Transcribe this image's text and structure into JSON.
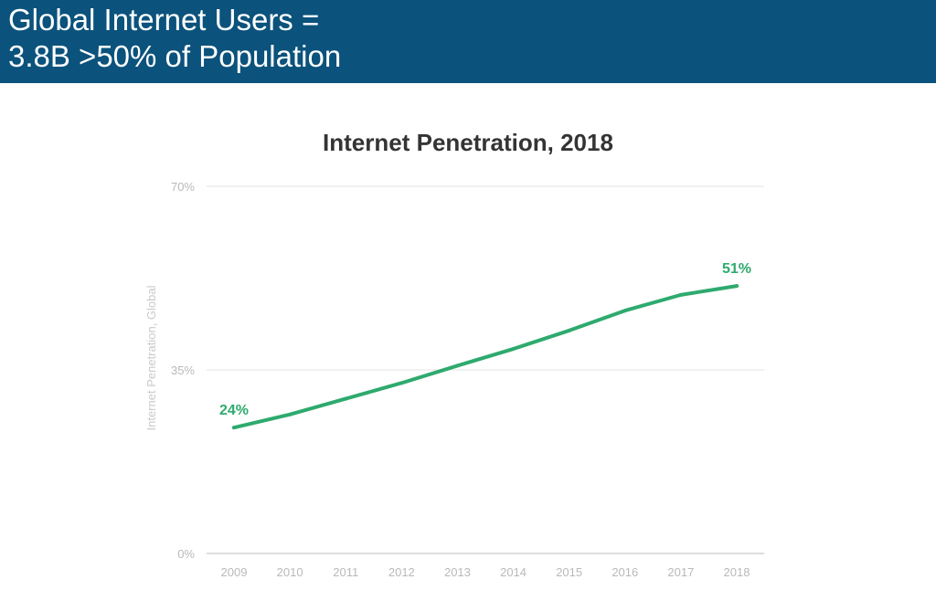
{
  "banner": {
    "line1": "Global Internet Users =",
    "line2": "3.8B >50% of Population",
    "background": "#0b527c"
  },
  "chart_data": {
    "type": "line",
    "title": "Internet Penetration, 2018",
    "xlabel": "",
    "ylabel": "Internet Penetration, Global",
    "x": [
      "2009",
      "2010",
      "2011",
      "2012",
      "2013",
      "2014",
      "2015",
      "2016",
      "2017",
      "2018"
    ],
    "series": [
      {
        "values": [
          24,
          26.5,
          29.5,
          32.5,
          35.8,
          39,
          42.5,
          46.3,
          49.3,
          51
        ],
        "color": "#2eaa6e"
      }
    ],
    "yticks": [
      "0%",
      "35%",
      "70%"
    ],
    "ylim": [
      0,
      70
    ],
    "grid": true,
    "data_labels": [
      {
        "index": 0,
        "text": "24%"
      },
      {
        "index": 9,
        "text": "51%"
      }
    ]
  }
}
